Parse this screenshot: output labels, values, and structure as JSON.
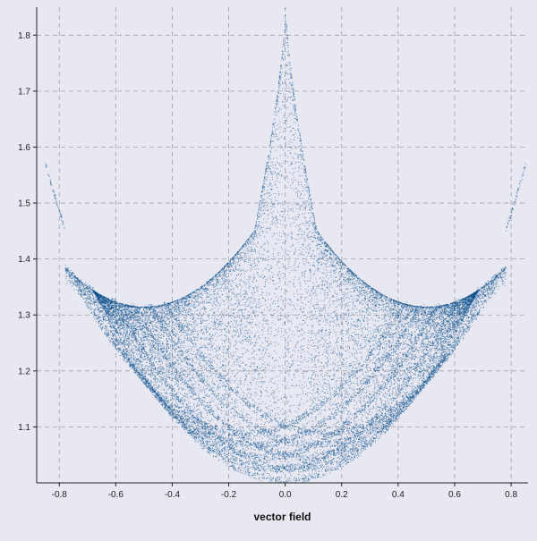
{
  "chart_data": {
    "type": "scatter",
    "title": "",
    "xlabel": "vector field",
    "ylabel": "",
    "xlim": [
      -0.88,
      0.86
    ],
    "ylim": [
      1.0,
      1.85
    ],
    "xticks": [
      -0.8,
      -0.6,
      -0.4,
      -0.2,
      0.0,
      0.2,
      0.4,
      0.6,
      0.8
    ],
    "xtick_labels": [
      "-0.8",
      "-0.6",
      "-0.4",
      "-0.2",
      "0.0",
      "0.2",
      "0.4",
      "0.6",
      "0.8"
    ],
    "yticks": [
      1.1,
      1.2,
      1.3,
      1.4,
      1.5,
      1.6,
      1.7,
      1.8
    ],
    "ytick_labels": [
      "1.1",
      "1.2",
      "1.3",
      "1.4",
      "1.5",
      "1.6",
      "1.7",
      "1.8"
    ],
    "grid": true,
    "colors": {
      "points": "#0a4f8a",
      "background": "#e8e8f2"
    },
    "series": [
      {
        "description": "dense point cloud forming a cusped bowl shape",
        "outline_points": [
          [
            -0.78,
            1.45
          ],
          [
            -0.6,
            1.33
          ],
          [
            -0.5,
            1.315
          ],
          [
            -0.4,
            1.33
          ],
          [
            -0.2,
            1.43
          ],
          [
            -0.1,
            1.55
          ],
          [
            0.0,
            1.85
          ],
          [
            0.1,
            1.55
          ],
          [
            0.2,
            1.43
          ],
          [
            0.4,
            1.33
          ],
          [
            0.5,
            1.315
          ],
          [
            0.6,
            1.33
          ],
          [
            0.78,
            1.45
          ]
        ],
        "lower_envelope": [
          [
            -0.78,
            1.45
          ],
          [
            -0.6,
            1.26
          ],
          [
            -0.4,
            1.13
          ],
          [
            -0.2,
            1.045
          ],
          [
            0.0,
            1.005
          ],
          [
            0.2,
            1.045
          ],
          [
            0.4,
            1.13
          ],
          [
            0.6,
            1.26
          ],
          [
            0.78,
            1.45
          ]
        ]
      }
    ]
  }
}
